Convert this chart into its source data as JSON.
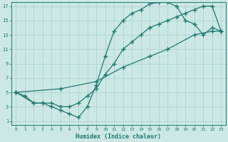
{
  "xlabel": "Humidex (Indice chaleur)",
  "bg_color": "#cce8e5",
  "grid_color": "#aacfcc",
  "line_color": "#1e7a70",
  "xlim": [
    -0.5,
    23.5
  ],
  "ylim": [
    0.5,
    17.5
  ],
  "xticks": [
    0,
    1,
    2,
    3,
    4,
    5,
    6,
    7,
    8,
    9,
    10,
    11,
    12,
    13,
    14,
    15,
    16,
    17,
    18,
    19,
    20,
    21,
    22,
    23
  ],
  "yticks": [
    1,
    3,
    5,
    7,
    9,
    11,
    13,
    15,
    17
  ],
  "line1_x": [
    0,
    1,
    2,
    3,
    4,
    5,
    6,
    7,
    8,
    9,
    10,
    11,
    12,
    13,
    14,
    15,
    16,
    17,
    18,
    19,
    20,
    21,
    22,
    23
  ],
  "line1_y": [
    5,
    4.5,
    3.5,
    3.5,
    3.0,
    2.5,
    2.0,
    1.5,
    3.0,
    6.0,
    10.0,
    13.5,
    15.0,
    16.0,
    16.5,
    17.3,
    17.5,
    17.5,
    17.0,
    15.0,
    14.5,
    13.0,
    14.0,
    13.5
  ],
  "line2_x": [
    0,
    2,
    3,
    4,
    5,
    6,
    7,
    8,
    9,
    10,
    11,
    12,
    13,
    14,
    15,
    16,
    17,
    18,
    19,
    20,
    21,
    22,
    23
  ],
  "line2_y": [
    5,
    3.5,
    3.5,
    3.5,
    3.0,
    3.0,
    3.5,
    4.5,
    5.5,
    7.5,
    9.0,
    11.0,
    12.0,
    13.0,
    14.0,
    14.5,
    15.0,
    15.5,
    16.0,
    16.5,
    17.0,
    17.0,
    13.5
  ],
  "line3_x": [
    0,
    5,
    9,
    12,
    15,
    17,
    20,
    22,
    23
  ],
  "line3_y": [
    5,
    5.5,
    6.5,
    8.5,
    10.0,
    11.0,
    13.0,
    13.5,
    13.5
  ]
}
